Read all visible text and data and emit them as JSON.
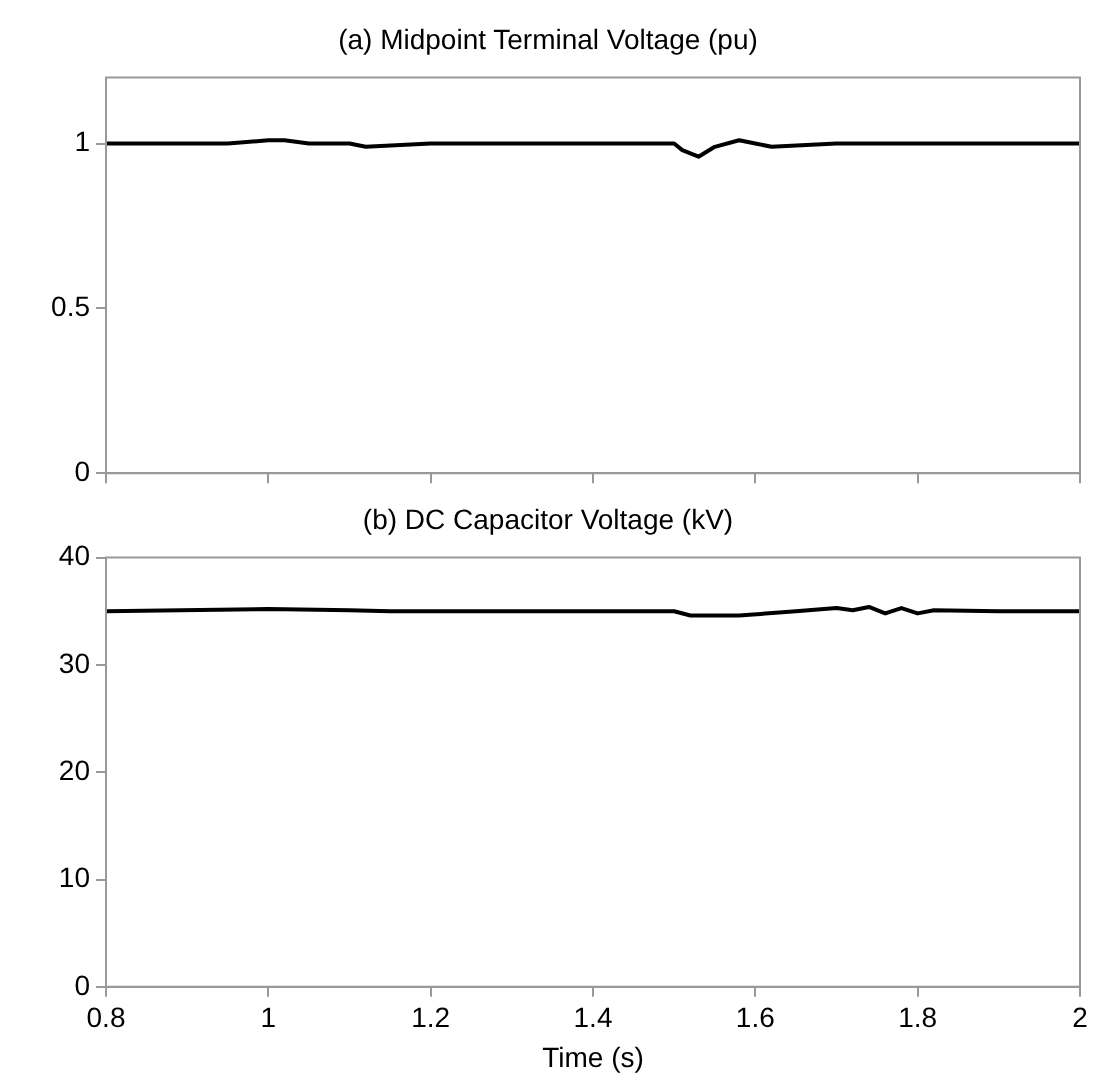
{
  "chart_data": [
    {
      "type": "line",
      "title": "(a) Midpoint Terminal Voltage (pu)",
      "x": [
        0.8,
        0.95,
        1.0,
        1.02,
        1.05,
        1.1,
        1.12,
        1.2,
        1.4,
        1.5,
        1.51,
        1.53,
        1.55,
        1.58,
        1.6,
        1.62,
        1.7,
        2.0
      ],
      "series": [
        {
          "color": "#000000",
          "values": [
            1,
            1,
            1.01,
            1.01,
            1.0,
            1.0,
            0.99,
            1,
            1,
            1,
            0.98,
            0.96,
            0.99,
            1.01,
            1.0,
            0.99,
            1,
            1
          ]
        }
      ],
      "xlim": [
        0.8,
        2
      ],
      "xticks": [
        0.8,
        1,
        1.2,
        1.4,
        1.6,
        1.8,
        2
      ],
      "ylim": [
        0,
        1.2
      ],
      "yticks": [
        0,
        0.5,
        1
      ],
      "tick_labels": "y",
      "grid": false,
      "legend": false
    },
    {
      "type": "line",
      "title": "(b) DC Capacitor Voltage (kV)",
      "xlabel": "Time (s)",
      "x": [
        0.8,
        1.0,
        1.1,
        1.15,
        1.5,
        1.52,
        1.58,
        1.65,
        1.7,
        1.72,
        1.74,
        1.76,
        1.78,
        1.8,
        1.82,
        1.9,
        2.0
      ],
      "series": [
        {
          "color": "#000000",
          "values": [
            35,
            35.2,
            35.1,
            35,
            35,
            34.6,
            34.6,
            35,
            35.3,
            35.1,
            35.4,
            34.8,
            35.3,
            34.8,
            35.1,
            35,
            35
          ]
        }
      ],
      "xlim": [
        0.8,
        2
      ],
      "xticks": [
        0.8,
        1,
        1.2,
        1.4,
        1.6,
        1.8,
        2
      ],
      "ylim": [
        0,
        40
      ],
      "yticks": [
        0,
        10,
        20,
        30,
        40
      ],
      "grid": false,
      "legend": false
    }
  ]
}
